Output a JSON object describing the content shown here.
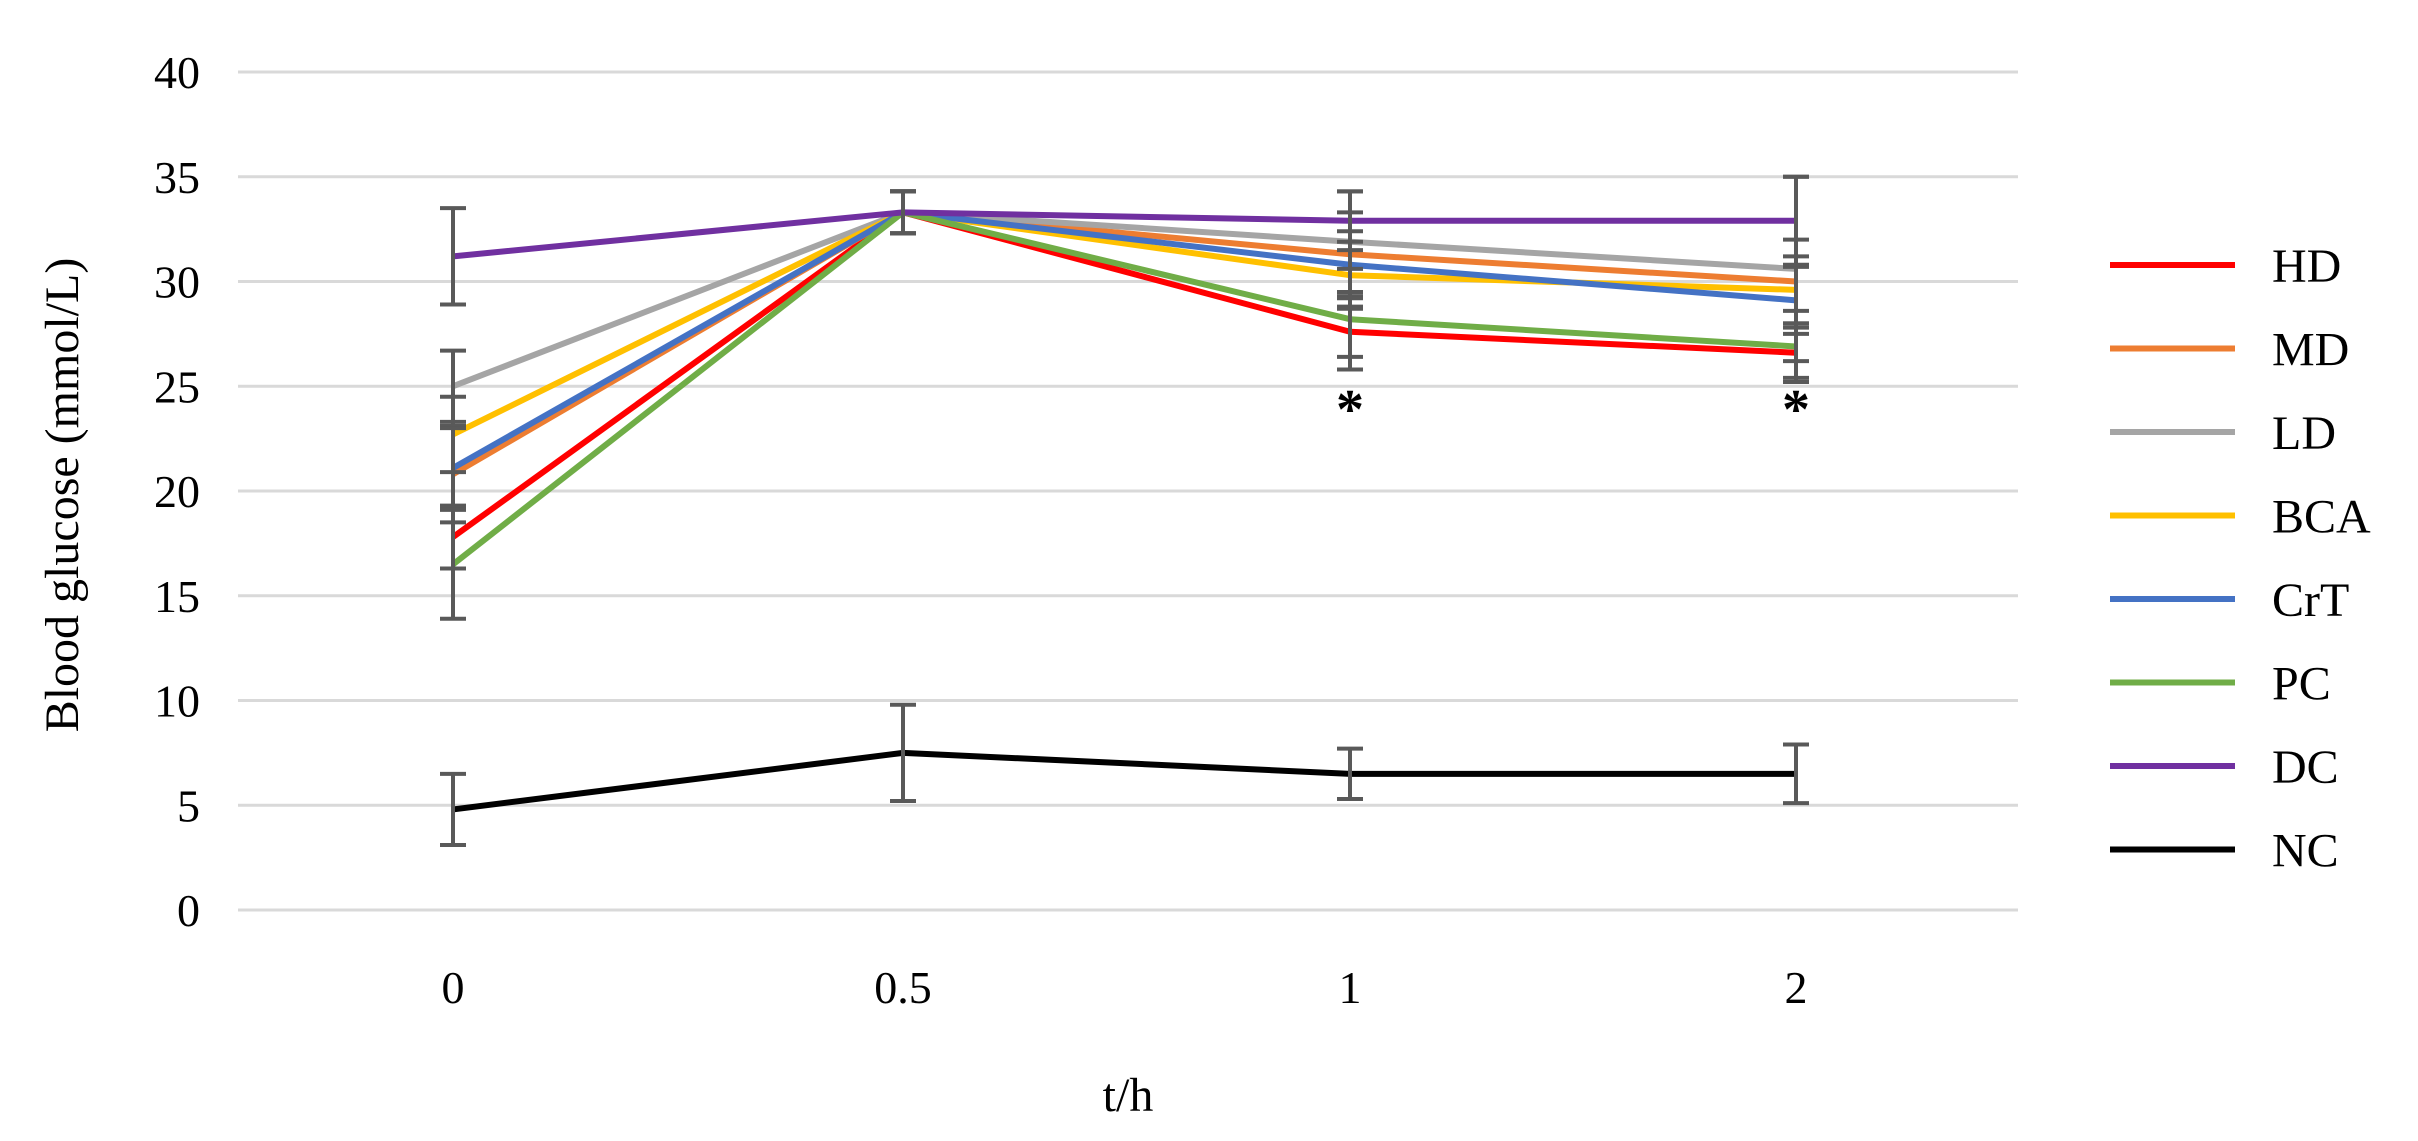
{
  "chart_data": {
    "type": "line",
    "title": "",
    "xlabel": "t/h",
    "ylabel": "Blood glucose (mmol/L)",
    "categories": [
      "0",
      "0.5",
      "1",
      "2"
    ],
    "ylim": [
      0,
      40
    ],
    "yticks": [
      0,
      5,
      10,
      15,
      20,
      25,
      30,
      35,
      40
    ],
    "grid": true,
    "legend_position": "right",
    "series": [
      {
        "name": "HD",
        "color": "#ff0000",
        "values": [
          17.8,
          33.3,
          27.6,
          26.6
        ],
        "errors": [
          1.5,
          1.0,
          1.2,
          1.2
        ]
      },
      {
        "name": "MD",
        "color": "#ed7d31",
        "values": [
          20.8,
          33.3,
          31.3,
          30.0
        ],
        "errors": [
          2.3,
          1.0,
          2.0,
          2.0
        ]
      },
      {
        "name": "LD",
        "color": "#a5a5a5",
        "values": [
          25.0,
          33.3,
          31.9,
          30.6
        ],
        "errors": [
          1.7,
          1.0,
          2.4,
          4.4
        ]
      },
      {
        "name": "BCA",
        "color": "#ffc000",
        "values": [
          22.7,
          33.3,
          30.3,
          29.6
        ],
        "errors": [
          1.8,
          1.0,
          1.6,
          1.6
        ]
      },
      {
        "name": "CrT",
        "color": "#4472c4",
        "values": [
          21.1,
          33.3,
          30.8,
          29.1
        ],
        "errors": [
          1.9,
          1.0,
          1.6,
          1.6
        ]
      },
      {
        "name": "PC",
        "color": "#70ad47",
        "values": [
          16.5,
          33.3,
          28.2,
          26.9
        ],
        "errors": [
          2.6,
          1.0,
          2.4,
          1.7
        ]
      },
      {
        "name": "DC",
        "color": "#7030a0",
        "values": [
          31.2,
          33.3,
          32.9,
          32.9
        ],
        "errors": [
          2.3,
          1.0,
          1.4,
          2.1
        ]
      },
      {
        "name": "NC",
        "color": "#000000",
        "values": [
          4.8,
          7.5,
          6.5,
          6.5
        ],
        "errors": [
          1.7,
          2.3,
          1.2,
          1.4
        ]
      }
    ],
    "annotations": [
      {
        "category": "1",
        "text": "*"
      },
      {
        "category": "2",
        "text": "*"
      }
    ]
  }
}
